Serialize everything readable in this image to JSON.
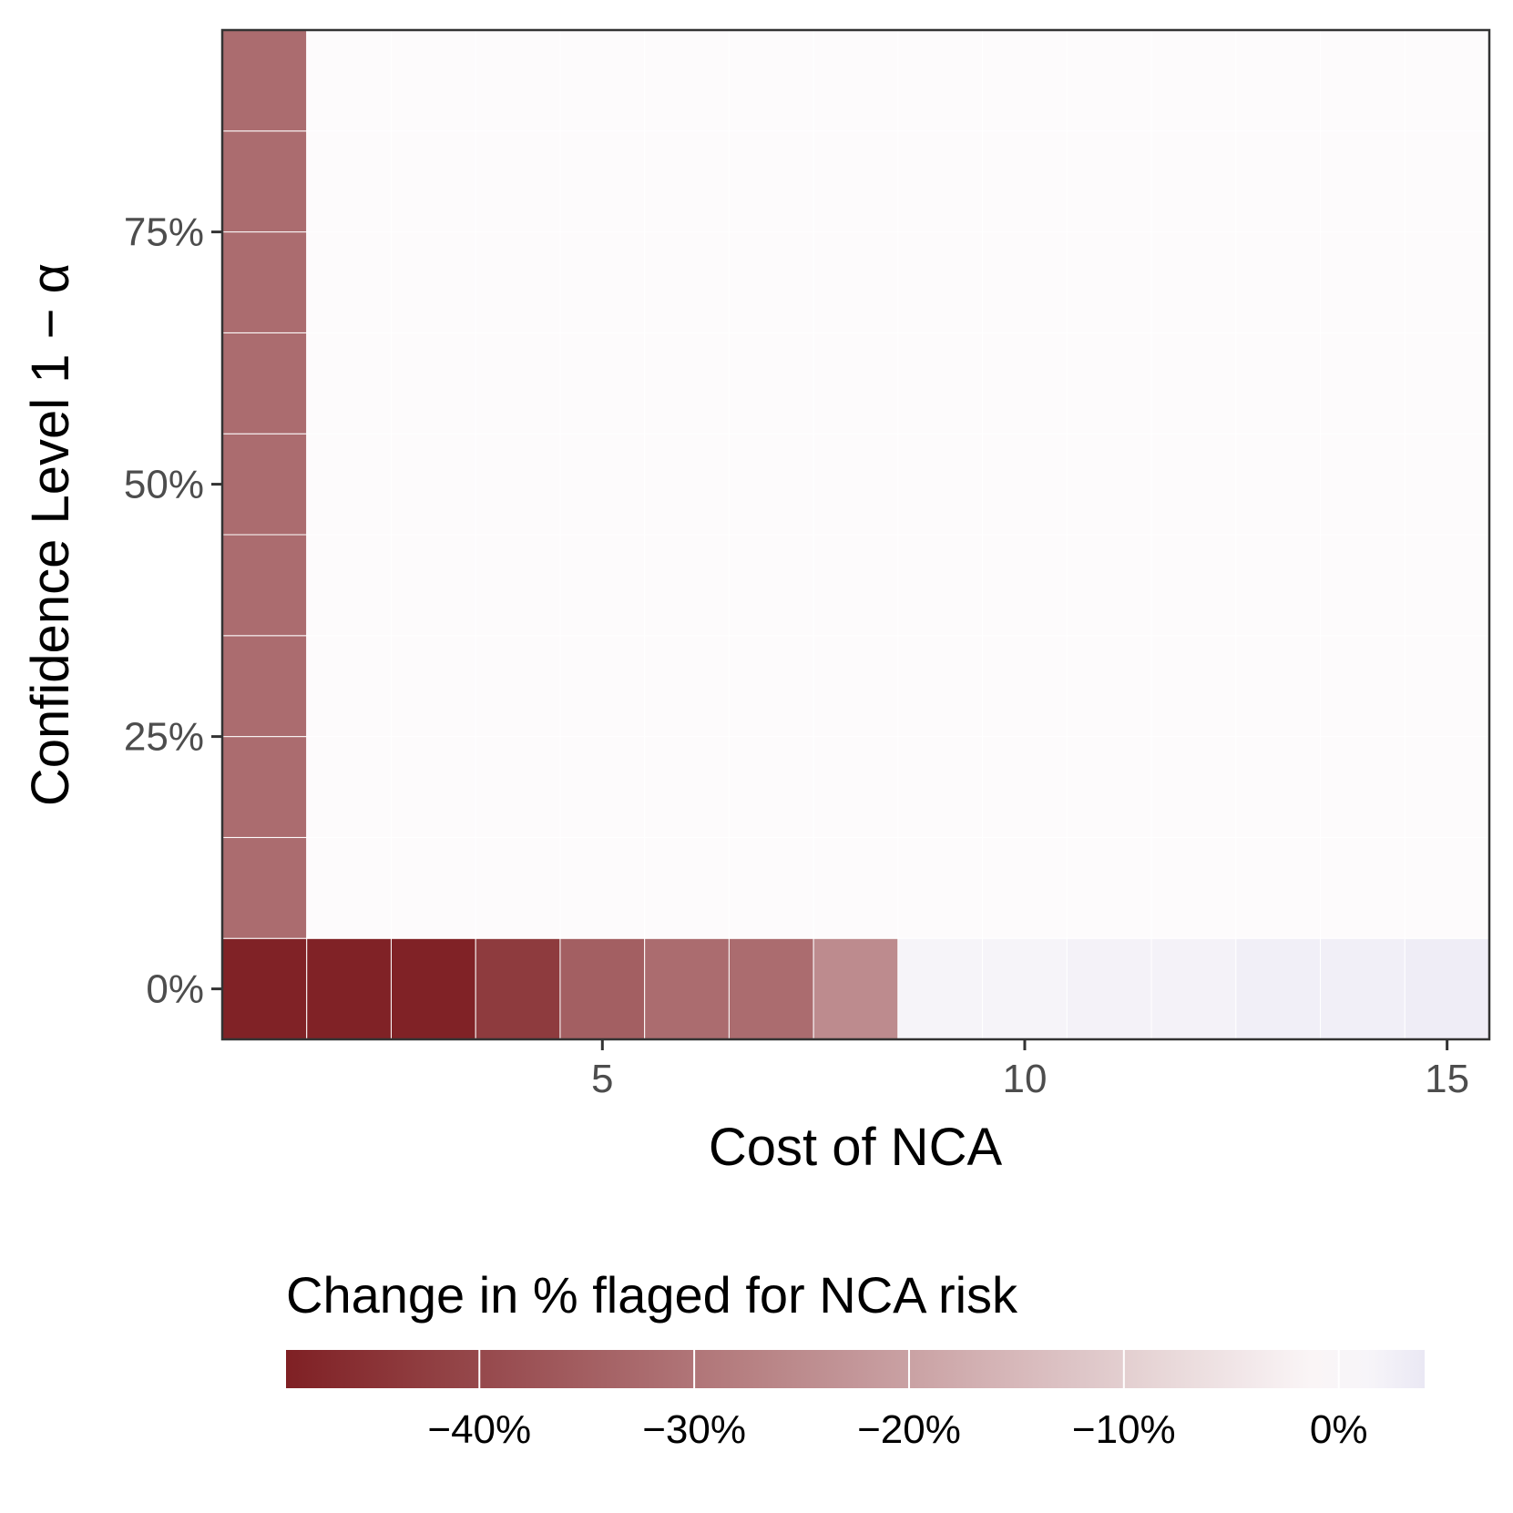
{
  "chart_data": {
    "type": "heatmap",
    "xlabel": "Cost of NCA",
    "ylabel": "Confidence Level 1 − α",
    "x_values": [
      1,
      2,
      3,
      4,
      5,
      6,
      7,
      8,
      9,
      10,
      11,
      12,
      13,
      14,
      15
    ],
    "y_values": [
      0,
      0.1,
      0.2,
      0.3,
      0.4,
      0.5,
      0.6,
      0.7,
      0.8,
      0.9
    ],
    "x_ticks": [
      {
        "value": 5,
        "label": "5"
      },
      {
        "value": 10,
        "label": "10"
      },
      {
        "value": 15,
        "label": "15"
      }
    ],
    "y_ticks": [
      {
        "value": 0,
        "label": "0%"
      },
      {
        "value": 0.25,
        "label": "25%"
      },
      {
        "value": 0.5,
        "label": "50%"
      },
      {
        "value": 0.75,
        "label": "75%"
      }
    ],
    "xlim": [
      0.5,
      15.5
    ],
    "ylim": [
      -0.05,
      0.95
    ],
    "rows": [
      {
        "y": 0,
        "values": [
          -0.485,
          -0.485,
          -0.485,
          -0.43,
          -0.35,
          -0.32,
          -0.32,
          -0.25,
          0.015,
          0.015,
          0.02,
          0.02,
          0.025,
          0.025,
          0.03
        ]
      },
      {
        "y": 0.1,
        "values": [
          -0.32,
          0,
          0,
          0,
          0,
          0,
          0,
          0,
          0,
          0,
          0,
          0,
          0,
          0,
          0
        ]
      },
      {
        "y": 0.2,
        "values": [
          -0.32,
          0,
          0,
          0,
          0,
          0,
          0,
          0,
          0,
          0,
          0,
          0,
          0,
          0,
          0
        ]
      },
      {
        "y": 0.3,
        "values": [
          -0.32,
          0,
          0,
          0,
          0,
          0,
          0,
          0,
          0,
          0,
          0,
          0,
          0,
          0,
          0
        ]
      },
      {
        "y": 0.4,
        "values": [
          -0.32,
          0,
          0,
          0,
          0,
          0,
          0,
          0,
          0,
          0,
          0,
          0,
          0,
          0,
          0
        ]
      },
      {
        "y": 0.5,
        "values": [
          -0.32,
          0,
          0,
          0,
          0,
          0,
          0,
          0,
          0,
          0,
          0,
          0,
          0,
          0,
          0
        ]
      },
      {
        "y": 0.6,
        "values": [
          -0.32,
          0,
          0,
          0,
          0,
          0,
          0,
          0,
          0,
          0,
          0,
          0,
          0,
          0,
          0
        ]
      },
      {
        "y": 0.7,
        "values": [
          -0.32,
          0,
          0,
          0,
          0,
          0,
          0,
          0,
          0,
          0,
          0,
          0,
          0,
          0,
          0
        ]
      },
      {
        "y": 0.8,
        "values": [
          -0.32,
          0,
          0,
          0,
          0,
          0,
          0,
          0,
          0,
          0,
          0,
          0,
          0,
          0,
          0
        ]
      },
      {
        "y": 0.9,
        "values": [
          -0.32,
          0,
          0,
          0,
          0,
          0,
          0,
          0,
          0,
          0,
          0,
          0,
          0,
          0,
          0
        ]
      }
    ],
    "legend": {
      "title": "Change in % flaged for NCA risk",
      "placement": "bottom",
      "range": [
        -0.49,
        0.04
      ],
      "ticks": [
        {
          "value": -0.4,
          "label": "−40%"
        },
        {
          "value": -0.3,
          "label": "−30%"
        },
        {
          "value": -0.2,
          "label": "−20%"
        },
        {
          "value": -0.1,
          "label": "−10%"
        },
        {
          "value": 0,
          "label": "0%"
        }
      ]
    },
    "colors": {
      "low": "#7f2024",
      "mid": "#fdfbfc",
      "high": "#eae8f4",
      "panel_border": "#333333"
    },
    "grid": false
  }
}
